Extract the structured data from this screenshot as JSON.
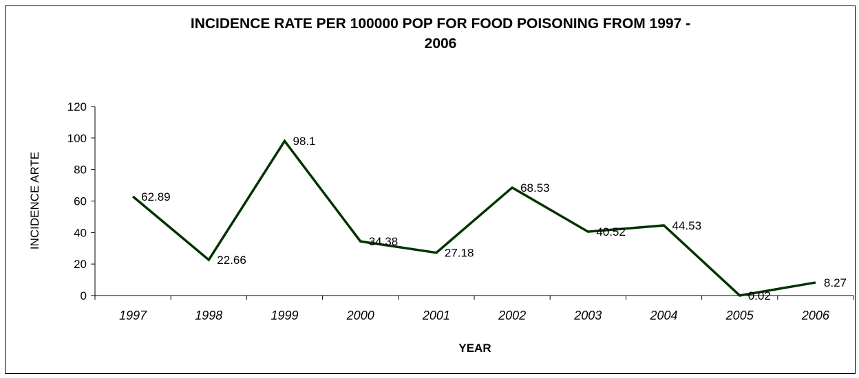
{
  "chart_data": {
    "type": "line",
    "title_lines": [
      "INCIDENCE RATE  PER 100000 POP FOR FOOD POISONING FROM 1997 -",
      "2006"
    ],
    "xlabel": "YEAR",
    "ylabel": "INCIDENCE ARTE",
    "categories": [
      "1997",
      "1998",
      "1999",
      "2000",
      "2001",
      "2002",
      "2003",
      "2004",
      "2005",
      "2006"
    ],
    "values": [
      62.89,
      22.66,
      98.1,
      34.38,
      27.18,
      68.53,
      40.52,
      44.53,
      0.02,
      8.27
    ],
    "value_labels": [
      "62.89",
      "22.66",
      "98.1",
      "34.38",
      "27.18",
      "68.53",
      "40.52",
      "44.53",
      "0.02",
      "8.27"
    ],
    "ylim": [
      0,
      120
    ],
    "yticks": [
      0,
      20,
      40,
      60,
      80,
      100,
      120
    ],
    "grid": false,
    "legend": false,
    "line_color": "#003300"
  }
}
